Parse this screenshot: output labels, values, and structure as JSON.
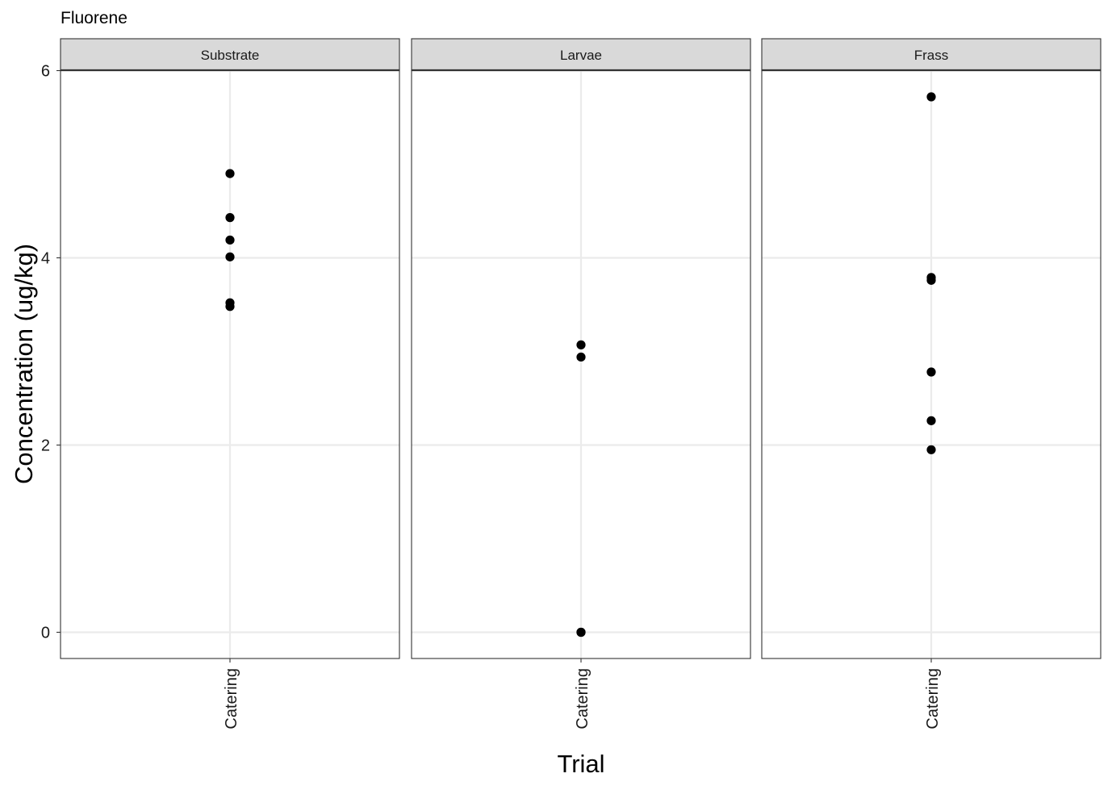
{
  "chart_data": {
    "type": "scatter",
    "title": "Fluorene",
    "xlabel": "Trial",
    "ylabel": "Concentration (ug/kg)",
    "ylim": [
      -0.28,
      6.05
    ],
    "yticks": [
      0,
      2,
      4,
      6
    ],
    "grid": true,
    "facets": [
      {
        "label": "Substrate",
        "category": "Catering",
        "values": [
          4.9,
          4.43,
          4.19,
          4.01,
          3.52,
          3.48
        ]
      },
      {
        "label": "Larvae",
        "category": "Catering",
        "values": [
          3.07,
          2.94,
          0.0,
          0.0
        ]
      },
      {
        "label": "Frass",
        "category": "Catering",
        "values": [
          5.72,
          3.79,
          3.76,
          2.78,
          2.26,
          1.95
        ]
      }
    ],
    "colors": {
      "point": "#000000",
      "grid": "#ebebeb",
      "strip_fill": "#d9d9d9",
      "panel_border": "#333333"
    }
  }
}
